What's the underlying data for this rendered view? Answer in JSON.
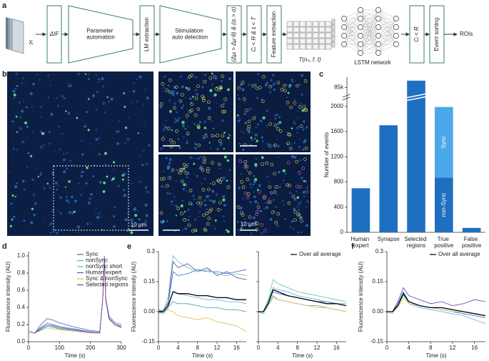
{
  "panel_a": {
    "label": "a",
    "input": "Xᵢ",
    "delta": "ΔIF",
    "param": "Parameter automation",
    "lm": "LM extraction",
    "stim": "Stimulation auto detection",
    "cond1": "(Δμᵢ > Δμ·θ) & (σᵢ > σ)",
    "cond2": "Cᵢ < R & tᵢ < T",
    "feature": "Feature extraction",
    "tensor": "T(nₛ, f, t)",
    "lstm": "LSTM network",
    "cond3": "Cᵢ < R",
    "sorting": "Event sorting",
    "output": "ROIs"
  },
  "panel_b": {
    "label": "b",
    "scale_big": "10 μm",
    "scale_small": "10 μm"
  },
  "chart_data": [
    {
      "type": "bar",
      "label": "c",
      "ylabel": "Number of events",
      "categories": [
        "Human expert",
        "Synapse",
        "Selected regions",
        "True positive",
        "False positive"
      ],
      "series": [
        {
          "name": "non-Sync",
          "color": "#1f6fc0",
          "values": [
            700,
            1700,
            87000,
            870,
            70
          ]
        },
        {
          "name": "Sync",
          "color": "#4aa8e8",
          "values": [
            null,
            null,
            null,
            1120,
            null
          ]
        }
      ],
      "ylim": [
        0,
        88000
      ],
      "ybreak": [
        2100,
        83000
      ],
      "yticks": [
        0,
        400,
        800,
        1200,
        1600,
        2000,
        {
          "value": 85000,
          "label": "85k"
        }
      ]
    },
    {
      "type": "line",
      "label": "d",
      "xlabel": "Time (s)",
      "ylabel": "Fluorescence intensity (AU)",
      "x": [
        0,
        20,
        40,
        60,
        80,
        100,
        150,
        200,
        230,
        240,
        245,
        250,
        260,
        280,
        300
      ],
      "xlim": [
        0,
        300
      ],
      "xticks": [
        0,
        100,
        200,
        300
      ],
      "ylim": [
        0,
        1.05
      ],
      "yticks": [
        {
          "value": 0,
          "label": "0.0"
        },
        0.2,
        0.4,
        0.6,
        0.8,
        {
          "value": 1,
          "label": "1.0"
        }
      ],
      "legend": "upper right",
      "series": [
        {
          "name": "Sync",
          "color": "#5a55d0",
          "values": [
            0.12,
            0.1,
            0.2,
            0.27,
            0.25,
            0.22,
            0.17,
            0.13,
            0.12,
            0.5,
            1.0,
            0.5,
            0.3,
            0.22,
            0.2
          ]
        },
        {
          "name": "nonSync",
          "color": "#5ab0e8",
          "values": [
            0.12,
            0.1,
            0.17,
            0.22,
            0.2,
            0.18,
            0.15,
            0.12,
            0.11,
            0.5,
            0.98,
            0.5,
            0.28,
            0.2,
            0.18
          ]
        },
        {
          "name": "nonSync short",
          "color": "#5cc890",
          "values": [
            0.12,
            0.1,
            0.15,
            0.2,
            0.18,
            0.16,
            0.14,
            0.11,
            0.1,
            0.5,
            0.97,
            0.48,
            0.27,
            0.2,
            0.17
          ]
        },
        {
          "name": "Human expert",
          "color": "#2a6aa8",
          "values": [
            0.12,
            0.1,
            0.14,
            0.18,
            0.17,
            0.15,
            0.13,
            0.11,
            0.1,
            0.5,
            0.96,
            0.48,
            0.26,
            0.19,
            0.17
          ]
        },
        {
          "name": "Sync & nonSync",
          "color": "#d8c040",
          "values": [
            0.12,
            0.1,
            0.13,
            0.16,
            0.15,
            0.14,
            0.12,
            0.1,
            0.1,
            0.5,
            0.97,
            0.47,
            0.26,
            0.19,
            0.16
          ]
        },
        {
          "name": "Selected regions",
          "color": "#7a3aa0",
          "values": [
            0.12,
            0.1,
            0.16,
            0.2,
            0.19,
            0.17,
            0.14,
            0.11,
            0.1,
            0.5,
            0.98,
            0.49,
            0.27,
            0.2,
            0.18
          ]
        }
      ]
    },
    {
      "type": "line",
      "label": "e",
      "xlabel": "Time (s)",
      "ylabel": "Fluorescence intensity (AU)",
      "x": [
        0,
        1,
        2,
        3,
        4,
        6,
        8,
        10,
        12,
        14,
        16,
        18
      ],
      "xlim": [
        0,
        18
      ],
      "xticks": [
        0,
        4,
        8,
        12,
        16
      ],
      "ylim": [
        -0.15,
        0.3
      ],
      "yticks": [
        -0.15,
        {
          "value": 0,
          "label": "0.00"
        },
        0.15,
        0.3
      ],
      "series": [
        {
          "color": "#5b3fb5",
          "values": [
            0.01,
            0.0,
            0.05,
            0.25,
            0.22,
            0.24,
            0.2,
            0.22,
            0.18,
            0.2,
            0.17,
            0.16
          ]
        },
        {
          "color": "#3a66d0",
          "values": [
            0,
            0.01,
            0.04,
            0.2,
            0.18,
            0.19,
            0.21,
            0.2,
            0.2,
            0.19,
            0.2,
            0.21
          ]
        },
        {
          "color": "#5cc890",
          "values": [
            -0.01,
            0.0,
            0.08,
            0.28,
            0.25,
            0.22,
            0.2,
            0.21,
            0.19,
            0.18,
            0.19,
            0.18
          ]
        },
        {
          "color": "#5ab0e8",
          "values": [
            0,
            0,
            0.03,
            0.1,
            0.09,
            0.08,
            0.07,
            0.06,
            0.06,
            0.05,
            0.05,
            0.04
          ]
        },
        {
          "color": "#40a0b0",
          "values": [
            0,
            -0.01,
            0.02,
            0.05,
            0.04,
            0.04,
            0.03,
            0.02,
            0.02,
            0.01,
            0.01,
            0.0
          ]
        },
        {
          "color": "#e0c040",
          "values": [
            0,
            0,
            0.01,
            0.0,
            -0.02,
            -0.03,
            -0.04,
            -0.03,
            -0.05,
            -0.06,
            -0.07,
            -0.1
          ]
        },
        {
          "color": "#000000",
          "values": [
            0,
            0,
            0.03,
            0.1,
            0.09,
            0.09,
            0.08,
            0.08,
            0.07,
            0.07,
            0.06,
            0.06
          ]
        }
      ]
    },
    {
      "type": "line",
      "xlabel": "Time (s)",
      "x": [
        0,
        1,
        2,
        3,
        4,
        6,
        8,
        10,
        12,
        14,
        16,
        18
      ],
      "xlim": [
        0,
        18
      ],
      "xticks": [
        0,
        4,
        8,
        12,
        16
      ],
      "ylim": [
        -0.15,
        0.3
      ],
      "yticks": [
        -0.15,
        0,
        0.15,
        0.3
      ],
      "legend": "upper right",
      "series": [
        {
          "color": "#5cc890",
          "values": [
            0,
            0,
            0.06,
            0.16,
            0.14,
            0.12,
            0.1,
            0.09,
            0.08,
            0.07,
            0.06,
            0.05
          ]
        },
        {
          "color": "#5ab0e8",
          "values": [
            0,
            0,
            0.05,
            0.12,
            0.11,
            0.1,
            0.08,
            0.07,
            0.06,
            0.05,
            0.04,
            0.04
          ]
        },
        {
          "color": "#3a66d0",
          "values": [
            0,
            0,
            0.04,
            0.1,
            0.09,
            0.08,
            0.07,
            0.06,
            0.05,
            0.05,
            0.04,
            0.03
          ]
        },
        {
          "color": "#40a0b0",
          "values": [
            0,
            -0.01,
            0.03,
            0.08,
            0.06,
            0.05,
            0.04,
            0.03,
            0.03,
            0.02,
            0.01,
            0.0
          ]
        },
        {
          "color": "#e0c040",
          "values": [
            0,
            0,
            0.03,
            0.07,
            0.06,
            0.05,
            0.04,
            0.03,
            0.02,
            0.02,
            0.01,
            0.0
          ]
        },
        {
          "name": "Over all average",
          "color": "#000000",
          "values": [
            0,
            0,
            0.04,
            0.11,
            0.1,
            0.08,
            0.07,
            0.06,
            0.05,
            0.04,
            0.04,
            0.03
          ]
        }
      ]
    },
    {
      "type": "line",
      "label": "f",
      "xlabel": "Time (s)",
      "ylabel": "Fluorescence intensity (AU)",
      "x": [
        0,
        1,
        2,
        3,
        4,
        6,
        8,
        10,
        12,
        14,
        16,
        18
      ],
      "xlim": [
        0,
        18
      ],
      "xticks": [
        0,
        4,
        8,
        12,
        16
      ],
      "ylim": [
        -0.15,
        0.3
      ],
      "yticks": [
        -0.15,
        {
          "value": 0,
          "label": "0.00"
        },
        0.15,
        0.3
      ],
      "legend": "upper right",
      "series": [
        {
          "color": "#5b3fb5",
          "values": [
            0,
            0,
            0.05,
            0.12,
            0.08,
            0.06,
            0.04,
            0.05,
            0.03,
            0.04,
            0.06,
            0.05
          ]
        },
        {
          "color": "#3a66d0",
          "values": [
            0,
            0,
            0.04,
            0.1,
            0.05,
            0.03,
            0.02,
            0.01,
            0.0,
            -0.01,
            -0.02,
            -0.03
          ]
        },
        {
          "color": "#5ab0e8",
          "values": [
            0,
            0,
            0.03,
            0.09,
            0.04,
            0.02,
            0.01,
            0.0,
            -0.01,
            -0.02,
            -0.04,
            -0.06
          ]
        },
        {
          "color": "#5cc890",
          "values": [
            0,
            -0.01,
            0.03,
            0.08,
            0.05,
            0.03,
            0.02,
            0.02,
            0.01,
            0.0,
            -0.01,
            -0.02
          ]
        },
        {
          "color": "#e0c040",
          "values": [
            0,
            0,
            0.02,
            0.07,
            0.04,
            0.03,
            0.02,
            0.01,
            0.0,
            0.0,
            -0.01,
            -0.02
          ]
        },
        {
          "name": "Over all average",
          "color": "#000000",
          "values": [
            0,
            0,
            0.03,
            0.09,
            0.05,
            0.03,
            0.02,
            0.02,
            0.01,
            0.0,
            -0.01,
            -0.02
          ]
        }
      ]
    }
  ]
}
